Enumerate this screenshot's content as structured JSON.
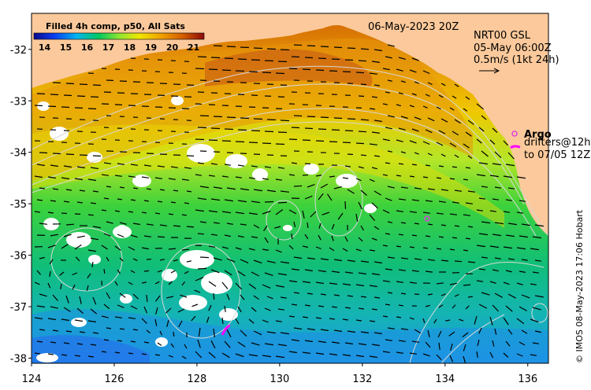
{
  "map": {
    "title": "Filled 4h comp, p50, All Sats",
    "date": "06-May-2023 20Z",
    "overlay": {
      "line1": "NRT00 GSL",
      "line2": "05-May 06:00Z",
      "line3": "0.5m/s (1kt 24h)"
    },
    "legend": {
      "argo": "Argo",
      "drifters": "drifters@12h",
      "drifters_to": "to 07/05 12Z"
    },
    "copyright": "© IMOS 08-May-2023 17:06 Hobart",
    "colorbar": {
      "labels": [
        "14",
        "15",
        "16",
        "17",
        "18",
        "19",
        "20",
        "21"
      ],
      "min": 13.5,
      "max": 21.5
    },
    "x_axis": {
      "labels": [
        "124",
        "126",
        "128",
        "130",
        "132",
        "134",
        "136"
      ],
      "range": [
        124,
        136.5
      ]
    },
    "y_axis": {
      "labels": [
        "-32",
        "-33",
        "-34",
        "-35",
        "-36",
        "-37",
        "-38"
      ],
      "range": [
        -38.1,
        -31.3
      ]
    },
    "colors": {
      "land": "#fbc99b",
      "argo": "#e040e0",
      "drifter": "#ff00ff"
    }
  }
}
